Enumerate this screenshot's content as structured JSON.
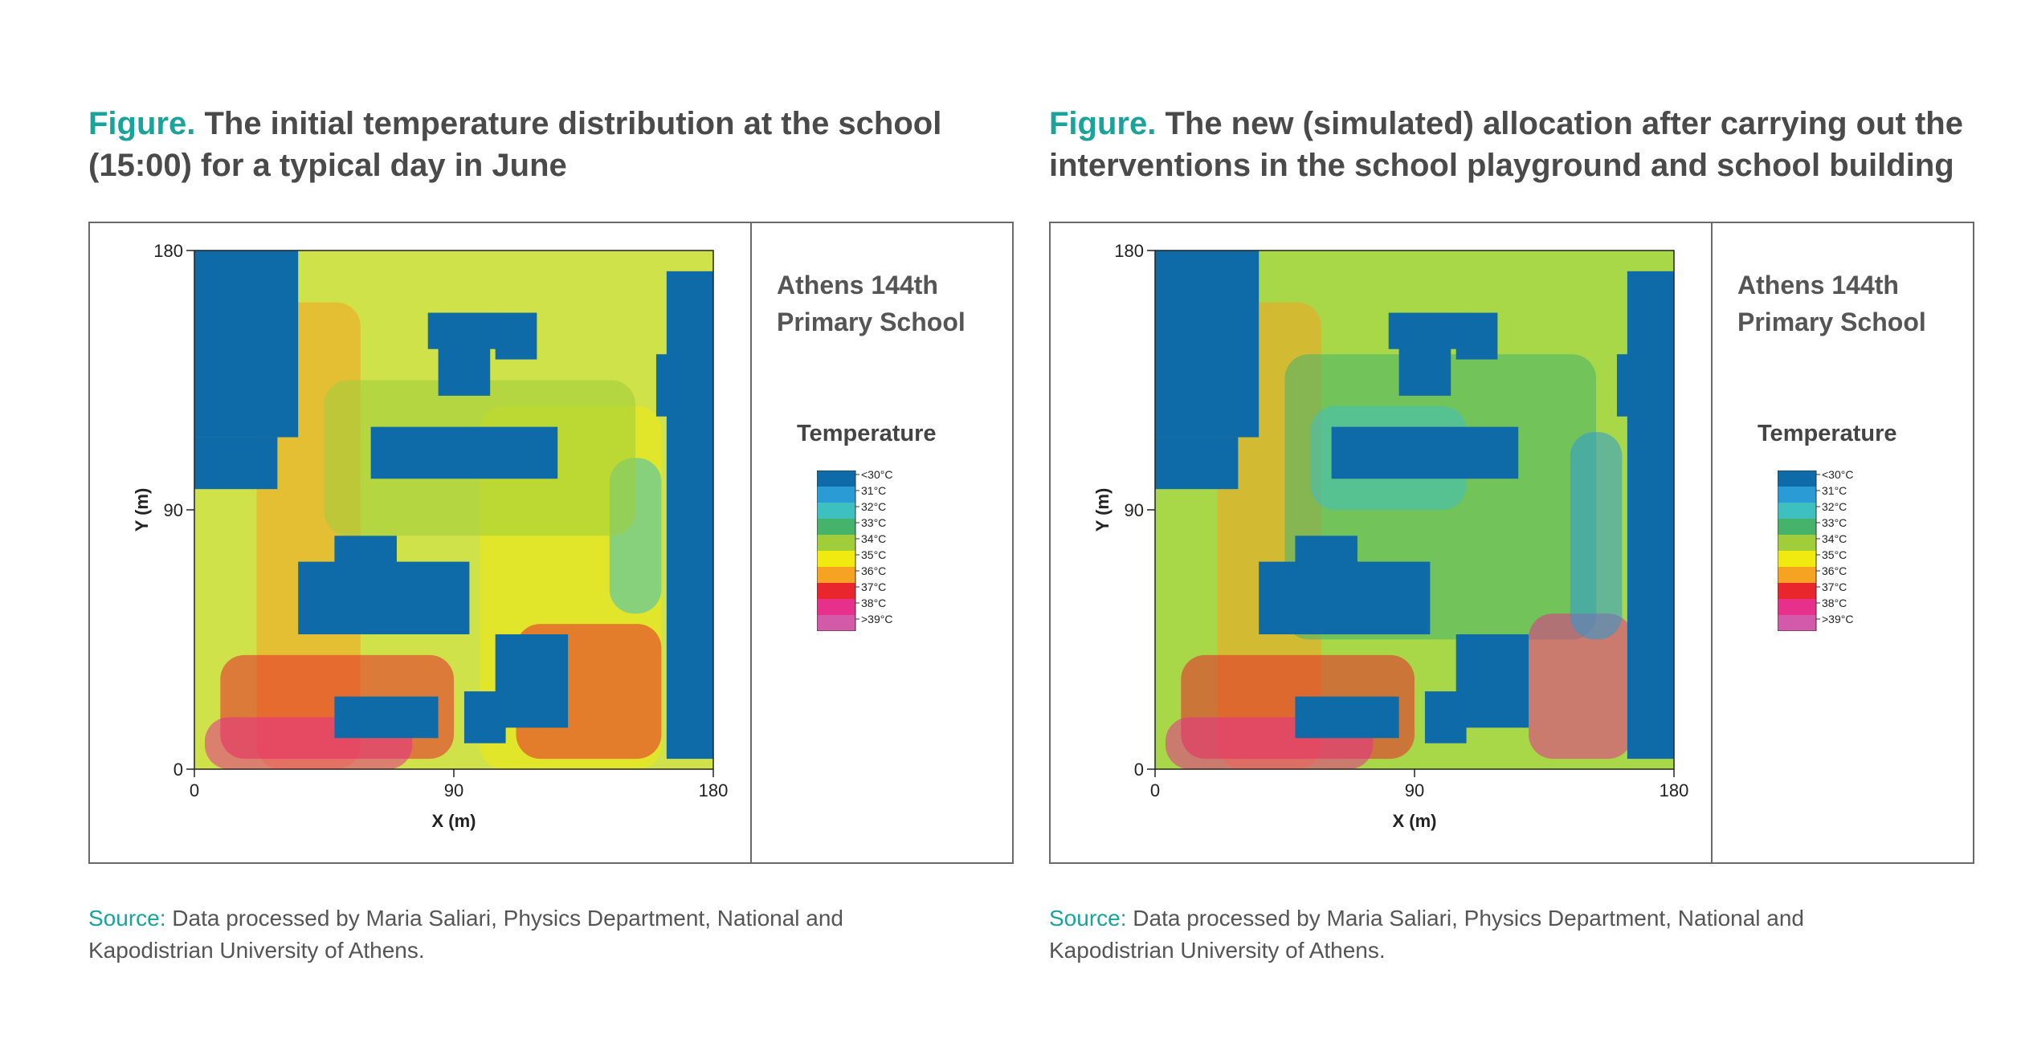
{
  "panels": [
    {
      "caption_label": "Figure.",
      "caption_text": " The initial temperature distribution at the school (15:00) for a typical day in June",
      "school_line1": "Athens 144th",
      "school_line2": "Primary School",
      "legend_title": "Temperature",
      "source_label": "Source:",
      "source_text": " Data processed by Maria Saliari, Physics Department, National and Kapodistrian University of Athens."
    },
    {
      "caption_label": "Figure.",
      "caption_text": " The new (simulated) allocation after carrying out the interventions in the school playground and school building",
      "school_line1": "Athens 144th",
      "school_line2": "Primary School",
      "legend_title": "Temperature",
      "source_label": "Source:",
      "source_text": " Data processed by Maria Saliari, Physics Department, National and Kapodistrian University of Athens."
    }
  ],
  "colors": {
    "accent": "#1aa39b",
    "building": "#0f6ba8"
  },
  "chart_data": [
    {
      "type": "heatmap",
      "xlabel": "X (m)",
      "ylabel": "Y (m)",
      "xlim": [
        0,
        180
      ],
      "ylim": [
        0,
        180
      ],
      "x_ticks": [
        0,
        90,
        180
      ],
      "y_ticks": [
        0,
        90,
        180
      ],
      "legend_entries": [
        "<30°C",
        "31°C",
        "32°C",
        "33°C",
        "34°C",
        "35°C",
        "36°C",
        "37°C",
        "38°C",
        ">39°C"
      ],
      "legend_colors": [
        "#0f6ba8",
        "#2b9bd6",
        "#3fc0c0",
        "#46b36a",
        "#9fce3a",
        "#f0ea10",
        "#f6a323",
        "#e8262b",
        "#e6308c",
        "#d25aa8"
      ]
    },
    {
      "type": "heatmap",
      "xlabel": "X (m)",
      "ylabel": "Y (m)",
      "xlim": [
        0,
        180
      ],
      "ylim": [
        0,
        180
      ],
      "x_ticks": [
        0,
        90,
        180
      ],
      "y_ticks": [
        0,
        90,
        180
      ],
      "legend_entries": [
        "<30°C",
        "31°C",
        "32°C",
        "33°C",
        "34°C",
        "35°C",
        "36°C",
        "37°C",
        "38°C",
        ">39°C"
      ],
      "legend_colors": [
        "#0f6ba8",
        "#2b9bd6",
        "#3fc0c0",
        "#46b36a",
        "#9fce3a",
        "#f0ea10",
        "#f6a323",
        "#e8262b",
        "#e6308c",
        "#d25aa8"
      ]
    }
  ]
}
